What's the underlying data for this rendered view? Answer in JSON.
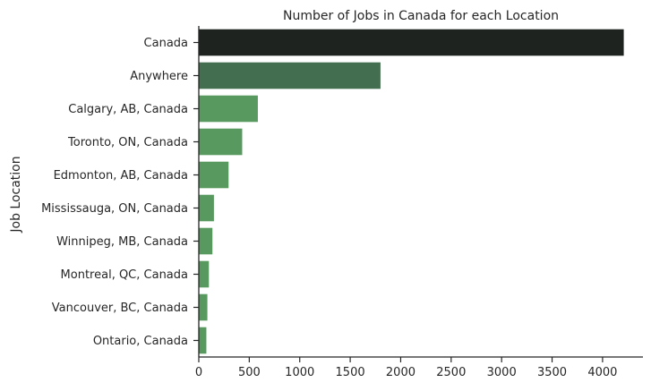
{
  "chart_data": {
    "type": "bar",
    "orientation": "horizontal",
    "title": "Number of Jobs in Canada for each Location",
    "xlabel": "",
    "ylabel": "Job Location",
    "categories": [
      "Canada",
      "Anywhere",
      "Calgary, AB, Canada",
      "Toronto, ON, Canada",
      "Edmonton, AB, Canada",
      "Mississauga, ON, Canada",
      "Winnipeg, MB, Canada",
      "Montreal, QC, Canada",
      "Vancouver, BC, Canada",
      "Ontario, Canada"
    ],
    "values": [
      4210,
      1800,
      585,
      430,
      295,
      150,
      135,
      100,
      85,
      75
    ],
    "xlim": [
      0,
      4400
    ],
    "xticks": [
      0,
      500,
      1000,
      1500,
      2000,
      2500,
      3000,
      3500,
      4000
    ],
    "grid": false,
    "colors": [
      "#1f2320",
      "#436e4f",
      "#58995f",
      "#58995f",
      "#58995f",
      "#58995f",
      "#58995f",
      "#58995f",
      "#58995f",
      "#58995f"
    ]
  }
}
